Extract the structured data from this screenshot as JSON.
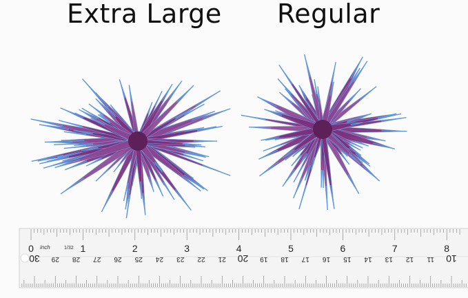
{
  "labels": {
    "left": "Extra Large",
    "right": "Regular"
  },
  "ruler": {
    "unit_label": "inch",
    "fraction_label": "1/32",
    "inch_numbers": [
      "0",
      "1",
      "2",
      "3",
      "4",
      "5",
      "6",
      "7",
      "8"
    ],
    "cm_numbers": [
      "30",
      "29",
      "28",
      "27",
      "26",
      "25",
      "24",
      "23",
      "22",
      "21",
      "20",
      "19",
      "18",
      "17",
      "16",
      "15",
      "14",
      "13",
      "12",
      "11",
      "10"
    ]
  },
  "colors": {
    "leaf_purple": "#7a2f78",
    "leaf_tip_blue": "#5b8fd6",
    "background": "#fbfbfb"
  }
}
